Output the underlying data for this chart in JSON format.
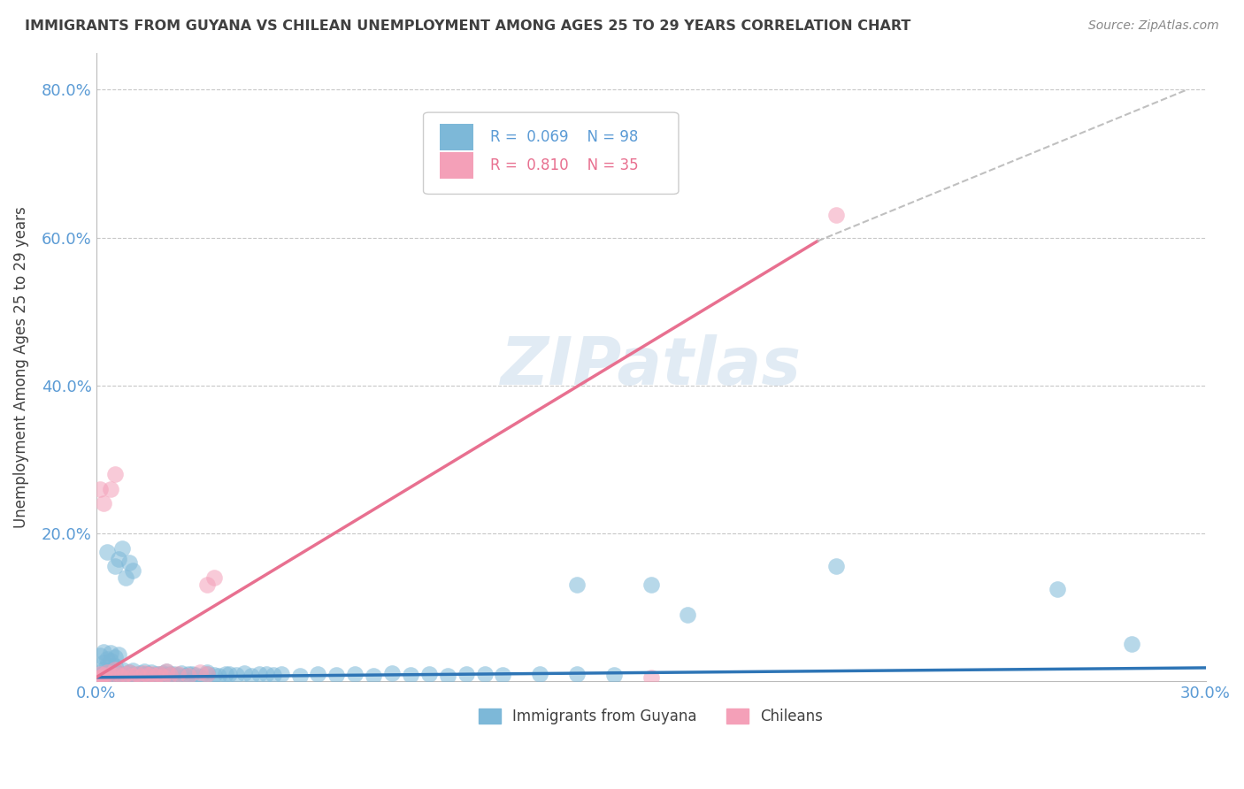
{
  "title": "IMMIGRANTS FROM GUYANA VS CHILEAN UNEMPLOYMENT AMONG AGES 25 TO 29 YEARS CORRELATION CHART",
  "source_text": "Source: ZipAtlas.com",
  "ylabel": "Unemployment Among Ages 25 to 29 years",
  "xlim": [
    0.0,
    0.3
  ],
  "ylim": [
    0.0,
    0.85
  ],
  "xticks": [
    0.0,
    0.05,
    0.1,
    0.15,
    0.2,
    0.25,
    0.3
  ],
  "xticklabels": [
    "0.0%",
    "",
    "",
    "",
    "",
    "",
    "30.0%"
  ],
  "yticks": [
    0.0,
    0.2,
    0.4,
    0.6,
    0.8
  ],
  "yticklabels": [
    "",
    "20.0%",
    "40.0%",
    "60.0%",
    "80.0%"
  ],
  "blue_color": "#7db8d8",
  "pink_color": "#f4a0b8",
  "axis_color": "#5b9bd5",
  "pink_line_color": "#e87090",
  "blue_line_color": "#2e75b6",
  "dashed_color": "#c0c0c0",
  "watermark": "ZIPatlas",
  "grid_color": "#c8c8c8",
  "title_color": "#404040",
  "blue_scatter": [
    [
      0.001,
      0.005
    ],
    [
      0.001,
      0.008
    ],
    [
      0.002,
      0.01
    ],
    [
      0.002,
      0.015
    ],
    [
      0.003,
      0.008
    ],
    [
      0.003,
      0.012
    ],
    [
      0.004,
      0.006
    ],
    [
      0.004,
      0.01
    ],
    [
      0.005,
      0.009
    ],
    [
      0.005,
      0.013
    ],
    [
      0.006,
      0.007
    ],
    [
      0.006,
      0.011
    ],
    [
      0.007,
      0.008
    ],
    [
      0.007,
      0.015
    ],
    [
      0.008,
      0.01
    ],
    [
      0.008,
      0.006
    ],
    [
      0.009,
      0.012
    ],
    [
      0.009,
      0.007
    ],
    [
      0.01,
      0.009
    ],
    [
      0.01,
      0.014
    ],
    [
      0.011,
      0.008
    ],
    [
      0.011,
      0.006
    ],
    [
      0.012,
      0.011
    ],
    [
      0.012,
      0.007
    ],
    [
      0.013,
      0.009
    ],
    [
      0.013,
      0.013
    ],
    [
      0.014,
      0.007
    ],
    [
      0.014,
      0.01
    ],
    [
      0.015,
      0.012
    ],
    [
      0.015,
      0.008
    ],
    [
      0.016,
      0.006
    ],
    [
      0.016,
      0.01
    ],
    [
      0.017,
      0.009
    ],
    [
      0.017,
      0.007
    ],
    [
      0.018,
      0.011
    ],
    [
      0.018,
      0.008
    ],
    [
      0.019,
      0.007
    ],
    [
      0.019,
      0.013
    ],
    [
      0.02,
      0.01
    ],
    [
      0.02,
      0.007
    ],
    [
      0.021,
      0.009
    ],
    [
      0.022,
      0.008
    ],
    [
      0.023,
      0.011
    ],
    [
      0.024,
      0.007
    ],
    [
      0.025,
      0.009
    ],
    [
      0.026,
      0.01
    ],
    [
      0.027,
      0.008
    ],
    [
      0.028,
      0.006
    ],
    [
      0.03,
      0.009
    ],
    [
      0.03,
      0.012
    ],
    [
      0.032,
      0.008
    ],
    [
      0.033,
      0.007
    ],
    [
      0.035,
      0.01
    ],
    [
      0.036,
      0.009
    ],
    [
      0.038,
      0.008
    ],
    [
      0.04,
      0.011
    ],
    [
      0.042,
      0.007
    ],
    [
      0.044,
      0.009
    ],
    [
      0.046,
      0.01
    ],
    [
      0.048,
      0.008
    ],
    [
      0.05,
      0.009
    ],
    [
      0.055,
      0.007
    ],
    [
      0.06,
      0.01
    ],
    [
      0.065,
      0.008
    ],
    [
      0.07,
      0.009
    ],
    [
      0.075,
      0.007
    ],
    [
      0.08,
      0.011
    ],
    [
      0.085,
      0.008
    ],
    [
      0.09,
      0.009
    ],
    [
      0.095,
      0.007
    ],
    [
      0.1,
      0.01
    ],
    [
      0.105,
      0.009
    ],
    [
      0.11,
      0.008
    ],
    [
      0.12,
      0.009
    ],
    [
      0.13,
      0.01
    ],
    [
      0.14,
      0.008
    ],
    [
      0.003,
      0.175
    ],
    [
      0.005,
      0.155
    ],
    [
      0.006,
      0.165
    ],
    [
      0.007,
      0.18
    ],
    [
      0.008,
      0.14
    ],
    [
      0.009,
      0.16
    ],
    [
      0.01,
      0.15
    ],
    [
      0.2,
      0.155
    ],
    [
      0.26,
      0.125
    ],
    [
      0.13,
      0.13
    ],
    [
      0.15,
      0.13
    ],
    [
      0.16,
      0.09
    ],
    [
      0.001,
      0.035
    ],
    [
      0.002,
      0.04
    ],
    [
      0.003,
      0.03
    ],
    [
      0.004,
      0.038
    ],
    [
      0.005,
      0.032
    ],
    [
      0.006,
      0.036
    ],
    [
      0.002,
      0.025
    ],
    [
      0.003,
      0.022
    ],
    [
      0.004,
      0.028
    ],
    [
      0.005,
      0.02
    ],
    [
      0.28,
      0.05
    ]
  ],
  "pink_scatter": [
    [
      0.001,
      0.005
    ],
    [
      0.002,
      0.008
    ],
    [
      0.003,
      0.012
    ],
    [
      0.004,
      0.01
    ],
    [
      0.005,
      0.015
    ],
    [
      0.006,
      0.008
    ],
    [
      0.007,
      0.006
    ],
    [
      0.008,
      0.01
    ],
    [
      0.009,
      0.012
    ],
    [
      0.01,
      0.007
    ],
    [
      0.011,
      0.009
    ],
    [
      0.012,
      0.006
    ],
    [
      0.013,
      0.011
    ],
    [
      0.014,
      0.008
    ],
    [
      0.015,
      0.01
    ],
    [
      0.016,
      0.007
    ],
    [
      0.017,
      0.009
    ],
    [
      0.018,
      0.006
    ],
    [
      0.019,
      0.013
    ],
    [
      0.02,
      0.008
    ],
    [
      0.022,
      0.01
    ],
    [
      0.025,
      0.007
    ],
    [
      0.028,
      0.012
    ],
    [
      0.03,
      0.009
    ],
    [
      0.001,
      0.26
    ],
    [
      0.002,
      0.24
    ],
    [
      0.004,
      0.26
    ],
    [
      0.005,
      0.28
    ],
    [
      0.03,
      0.13
    ],
    [
      0.032,
      0.14
    ],
    [
      0.001,
      0.01
    ],
    [
      0.002,
      0.005
    ],
    [
      0.2,
      0.63
    ],
    [
      0.15,
      0.005
    ],
    [
      0.001,
      0.005
    ]
  ],
  "blue_line": [
    [
      0.0,
      0.005
    ],
    [
      0.3,
      0.018
    ]
  ],
  "pink_line": [
    [
      0.0,
      0.005
    ],
    [
      0.195,
      0.595
    ]
  ],
  "pink_dashed_line": [
    [
      0.195,
      0.595
    ],
    [
      0.295,
      0.8
    ]
  ]
}
